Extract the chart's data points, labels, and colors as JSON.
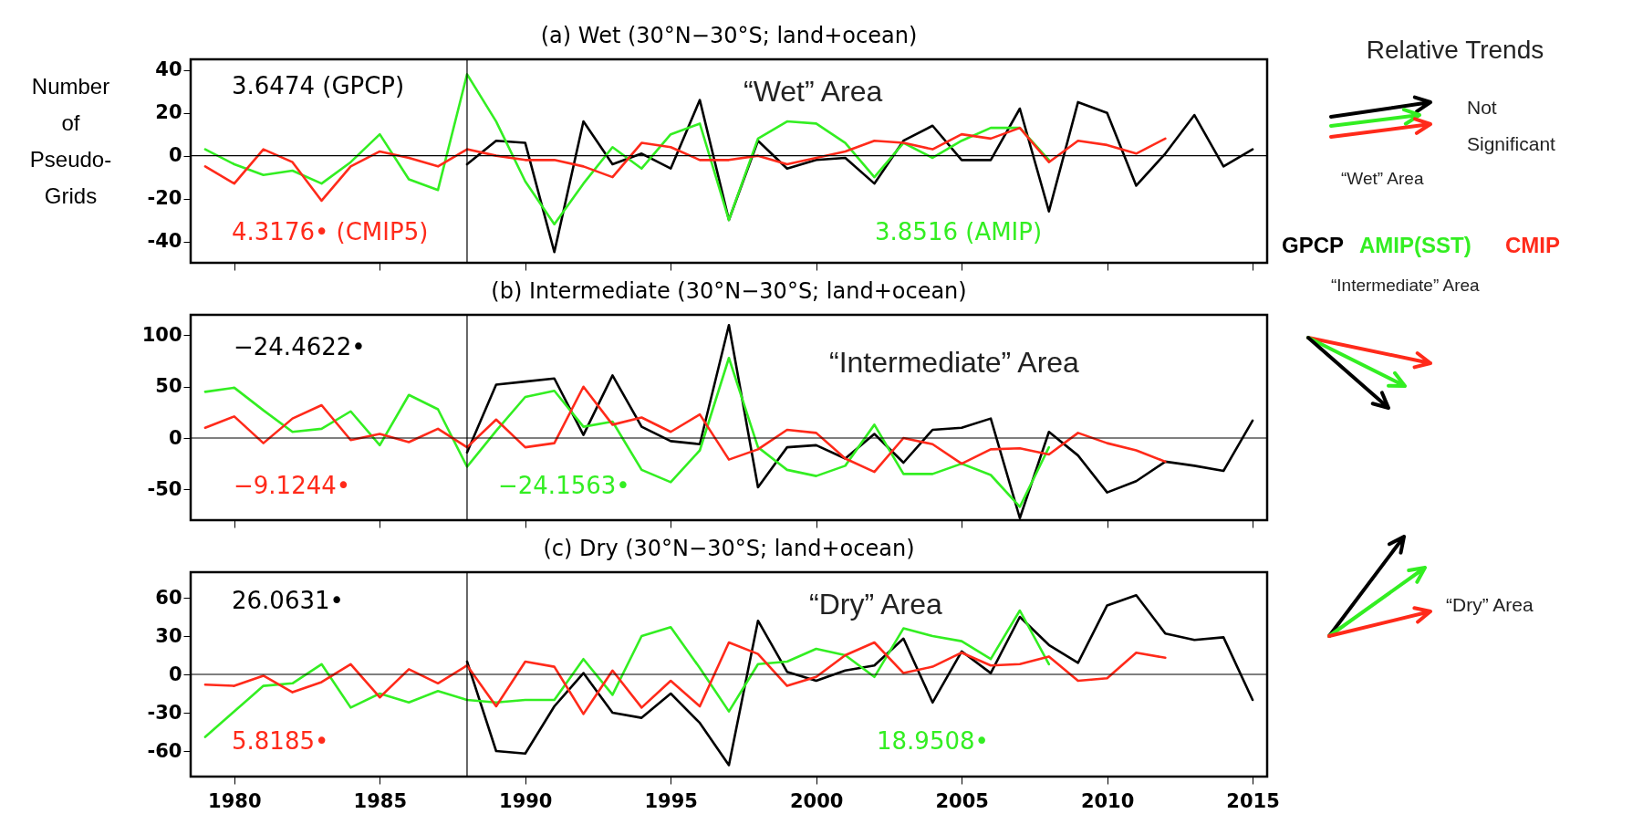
{
  "chart_data": [
    {
      "type": "line",
      "title": "(a) Wet (30°N−30°S; land+ocean)",
      "ylabel": "Number of Pseudo-Grids",
      "xlim": [
        1978.5,
        2015.5
      ],
      "xticks": [
        1980,
        1985,
        1990,
        1995,
        2000,
        2005,
        2010,
        2015
      ],
      "ylim": [
        -50,
        45
      ],
      "yticks": [
        -40,
        -20,
        0,
        20,
        40
      ],
      "tick_labels": "y",
      "grid": false,
      "series": [
        {
          "color": "#000000",
          "x": [
            1988,
            1989,
            1990,
            1991,
            1992,
            1993,
            1994,
            1995,
            1996,
            1997,
            1998,
            1999,
            2000,
            2001,
            2002,
            2003,
            2004,
            2005,
            2006,
            2007,
            2008,
            2009,
            2010,
            2011,
            2012,
            2013,
            2014,
            2015
          ],
          "values": [
            -4,
            7,
            6,
            -45,
            16,
            -4,
            1,
            -6,
            26,
            -30,
            7,
            -6,
            -2,
            -1,
            -13,
            7,
            14,
            -2,
            -2,
            22,
            -26,
            25,
            20,
            -14,
            1,
            19,
            -5,
            3
          ]
        },
        {
          "color": "#33ee22",
          "x": [
            1979,
            1980,
            1981,
            1982,
            1983,
            1984,
            1985,
            1986,
            1987,
            1988,
            1989,
            1990,
            1991,
            1992,
            1993,
            1994,
            1995,
            1996,
            1997,
            1998,
            1999,
            2000,
            2001,
            2002,
            2003,
            2004,
            2005,
            2006,
            2007,
            2008
          ],
          "values": [
            3,
            -4,
            -9,
            -7,
            -13,
            -3,
            10,
            -11,
            -16,
            38,
            16,
            -12,
            -32,
            -13,
            4,
            -6,
            10,
            15,
            -30,
            8,
            16,
            15,
            6,
            -10,
            6,
            -1,
            7,
            13,
            13,
            -2
          ]
        },
        {
          "color": "#ff2a1a",
          "x": [
            1979,
            1980,
            1981,
            1982,
            1983,
            1984,
            1985,
            1986,
            1987,
            1988,
            1989,
            1990,
            1991,
            1992,
            1993,
            1994,
            1995,
            1996,
            1997,
            1998,
            1999,
            2000,
            2001,
            2002,
            2003,
            2004,
            2005,
            2006,
            2007,
            2008,
            2009,
            2010,
            2011,
            2012
          ],
          "values": [
            -5,
            -13,
            3,
            -3,
            -21,
            -5,
            2,
            -1,
            -5,
            3,
            0,
            -2,
            -2,
            -5,
            -10,
            6,
            4,
            -2,
            -2,
            0,
            -4,
            -1,
            2,
            7,
            6,
            3,
            10,
            8,
            13,
            -3,
            7,
            5,
            1,
            8
          ]
        }
      ],
      "ref_lines": [
        {
          "axis": "x",
          "value": 1988
        },
        {
          "axis": "y",
          "value": 0
        }
      ],
      "annotations": [
        "3.6474 (GPCP)",
        "4.3176• (CMIP5)",
        "3.8516 (AMIP)",
        "“Wet” Area"
      ]
    },
    {
      "type": "line",
      "title": "(b) Intermediate (30°N−30°S; land+ocean)",
      "xlim": [
        1978.5,
        2015.5
      ],
      "xticks": [
        1980,
        1985,
        1990,
        1995,
        2000,
        2005,
        2010,
        2015
      ],
      "ylim": [
        -80,
        120
      ],
      "yticks": [
        -50,
        0,
        50,
        100
      ],
      "tick_labels": "y",
      "grid": false,
      "series": [
        {
          "color": "#000000",
          "x": [
            1988,
            1989,
            1990,
            1991,
            1992,
            1993,
            1994,
            1995,
            1996,
            1997,
            1998,
            1999,
            2000,
            2001,
            2002,
            2003,
            2004,
            2005,
            2006,
            2007,
            2008,
            2009,
            2010,
            2011,
            2012,
            2013,
            2014,
            2015
          ],
          "values": [
            -14,
            52,
            55,
            58,
            3,
            61,
            11,
            -3,
            -6,
            110,
            -48,
            -9,
            -7,
            -20,
            4,
            -24,
            8,
            10,
            19,
            -78,
            6,
            -17,
            -53,
            -42,
            -23,
            -27,
            -32,
            17
          ]
        },
        {
          "color": "#33ee22",
          "x": [
            1979,
            1980,
            1981,
            1982,
            1983,
            1984,
            1985,
            1986,
            1987,
            1988,
            1989,
            1990,
            1991,
            1992,
            1993,
            1994,
            1995,
            1996,
            1997,
            1998,
            1999,
            2000,
            2001,
            2002,
            2003,
            2004,
            2005,
            2006,
            2007,
            2008
          ],
          "values": [
            45,
            49,
            27,
            6,
            9,
            26,
            -7,
            42,
            28,
            -28,
            7,
            40,
            46,
            11,
            16,
            -31,
            -43,
            -12,
            78,
            -9,
            -31,
            -37,
            -27,
            13,
            -35,
            -35,
            -25,
            -36,
            -67,
            -9
          ]
        },
        {
          "color": "#ff2a1a",
          "x": [
            1979,
            1980,
            1981,
            1982,
            1983,
            1984,
            1985,
            1986,
            1987,
            1988,
            1989,
            1990,
            1991,
            1992,
            1993,
            1994,
            1995,
            1996,
            1997,
            1998,
            1999,
            2000,
            2001,
            2002,
            2003,
            2004,
            2005,
            2006,
            2007,
            2008,
            2009,
            2010,
            2011,
            2012
          ],
          "values": [
            10,
            21,
            -5,
            19,
            32,
            -2,
            4,
            -4,
            9,
            -9,
            18,
            -9,
            -5,
            50,
            13,
            20,
            6,
            23,
            -21,
            -11,
            8,
            5,
            -20,
            -33,
            0,
            -6,
            -25,
            -11,
            -10,
            -16,
            5,
            -5,
            -12,
            -23
          ]
        }
      ],
      "ref_lines": [
        {
          "axis": "x",
          "value": 1988
        },
        {
          "axis": "y",
          "value": 0
        }
      ],
      "annotations": [
        "−24.4622•",
        "−9.1244•",
        "−24.1563•",
        "“Intermediate” Area"
      ]
    },
    {
      "type": "line",
      "title": "(c) Dry (30°N−30°S; land+ocean)",
      "xlim": [
        1978.5,
        2015.5
      ],
      "xticks": [
        1980,
        1985,
        1990,
        1995,
        2000,
        2005,
        2010,
        2015
      ],
      "ylim": [
        -80,
        80
      ],
      "yticks": [
        -60,
        -30,
        0,
        30,
        60
      ],
      "grid": false,
      "series": [
        {
          "color": "#000000",
          "x": [
            1988,
            1989,
            1990,
            1991,
            1992,
            1993,
            1994,
            1995,
            1996,
            1997,
            1998,
            1999,
            2000,
            2001,
            2002,
            2003,
            2004,
            2005,
            2006,
            2007,
            2008,
            2009,
            2010,
            2011,
            2012,
            2013,
            2014,
            2015
          ],
          "values": [
            10,
            -60,
            -62,
            -25,
            1,
            -30,
            -34,
            -15,
            -38,
            -71,
            42,
            2,
            -5,
            3,
            7,
            28,
            -22,
            18,
            1,
            45,
            23,
            9,
            54,
            62,
            32,
            27,
            29,
            -20
          ]
        },
        {
          "color": "#33ee22",
          "x": [
            1979,
            1980,
            1981,
            1982,
            1983,
            1984,
            1985,
            1986,
            1987,
            1988,
            1989,
            1990,
            1991,
            1992,
            1993,
            1994,
            1995,
            1996,
            1997,
            1998,
            1999,
            2000,
            2001,
            2002,
            2003,
            2004,
            2005,
            2006,
            2007,
            2008
          ],
          "values": [
            -49,
            -29,
            -9,
            -7,
            8,
            -26,
            -15,
            -22,
            -13,
            -20,
            -22,
            -20,
            -20,
            12,
            -16,
            30,
            37,
            5,
            -29,
            8,
            10,
            20,
            15,
            -2,
            36,
            30,
            26,
            12,
            50,
            8
          ]
        },
        {
          "color": "#ff2a1a",
          "x": [
            1979,
            1980,
            1981,
            1982,
            1983,
            1984,
            1985,
            1986,
            1987,
            1988,
            1989,
            1990,
            1991,
            1992,
            1993,
            1994,
            1995,
            1996,
            1997,
            1998,
            1999,
            2000,
            2001,
            2002,
            2003,
            2004,
            2005,
            2006,
            2007,
            2008,
            2009,
            2010,
            2011,
            2012
          ],
          "values": [
            -8,
            -9,
            -1,
            -14,
            -6,
            8,
            -18,
            4,
            -7,
            7,
            -25,
            10,
            6,
            -31,
            3,
            -26,
            -5,
            -25,
            25,
            16,
            -9,
            -2,
            15,
            25,
            1,
            6,
            17,
            7,
            8,
            14,
            -5,
            -3,
            17,
            13
          ]
        }
      ],
      "ref_lines": [
        {
          "axis": "x",
          "value": 1988
        },
        {
          "axis": "y",
          "value": 0
        }
      ],
      "annotations": [
        "26.0631•",
        "5.8185•",
        "18.9508•",
        "“Dry” Area"
      ]
    },
    {
      "type": "other",
      "title": "Relative Trends",
      "annotations": [
        "Not Significant",
        "“Wet” Area",
        "GPCP",
        "AMIP(SST)",
        "CMIP",
        "“Intermediate” Area",
        "“Dry” Area"
      ]
    }
  ]
}
